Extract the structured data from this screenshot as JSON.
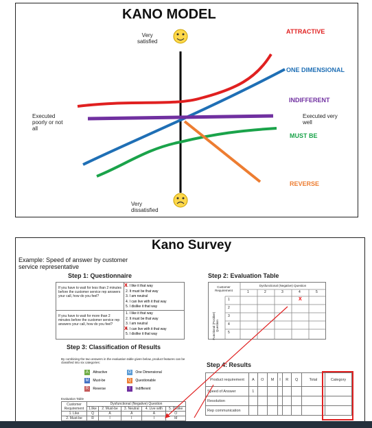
{
  "slide1": {
    "title": "KANO MODEL",
    "very_satisfied": "Very\nsatisfied",
    "very_dissatisfied": "Very\ndissatisfied",
    "executed_poorly": "Executed\npoorly or not\nall",
    "executed_well": "Executed very\nwell",
    "curves": [
      {
        "label": "ATTRACTIVE",
        "color": "#e02020"
      },
      {
        "label": "ONE DIMENSIONAL",
        "color": "#1f6fb5"
      },
      {
        "label": "INDIFFERENT",
        "color": "#7030a0"
      },
      {
        "label": "MUST BE",
        "color": "#1aa34a"
      },
      {
        "label": "REVERSE",
        "color": "#ed7d31"
      }
    ]
  },
  "slide2": {
    "title": "Kano Survey",
    "example": "Example: Speed of answer by customer\nservice representative",
    "step1": {
      "heading": "Step 1: Questionnaire",
      "q1": "If you have to wait for less than 2 minutes before the customer service rep answers your call, how do you feel?",
      "q2": "If you have to wait for more than 2 minutes before the customer service rep answers your call, how do you feel?",
      "answers1": [
        "1. I like it that way",
        "2. It must be that way",
        "3. I am neutral",
        "4. I can live with it that way",
        "5. I dislike it that way"
      ],
      "answers2": [
        "1. I like it that way",
        "2. It must be that way",
        "3. I am neutral",
        "4. I can live with it that way",
        "5. I dislike it that way"
      ],
      "mark": "X"
    },
    "step2": {
      "heading": "Step 2: Evaluation Table",
      "customer_requirement": "Customer Requirement",
      "dysfunctional": "Dysfunctional (Negative) Question",
      "functional": "Functional (Positive) Question",
      "cols": [
        "1",
        "2",
        "3",
        "4",
        "5"
      ],
      "rows": [
        "1",
        "2",
        "3",
        "4",
        "5"
      ],
      "mark": "X"
    },
    "step3": {
      "heading": "Step 3: Classification of Results",
      "desc": "By combining the two answers in the evaluation table given below, product features can be classified into six categories:",
      "categories": [
        {
          "code": "A",
          "name": "Attractive",
          "color": "#70ad47"
        },
        {
          "code": "M",
          "name": "Must-be",
          "color": "#4472c4"
        },
        {
          "code": "R",
          "name": "Reverse",
          "color": "#c55a5a"
        },
        {
          "code": "O",
          "name": "One Dimensional",
          "color": "#5b9bd5"
        },
        {
          "code": "Q",
          "name": "Questionable",
          "color": "#ed7d31"
        },
        {
          "code": "I",
          "name": "Indifferent",
          "color": "#7030a0"
        }
      ],
      "table_caption": "Evaluation Table",
      "table_header": "Dysfunctional (Negative) Question",
      "customer_requirement": "Customer Requirement",
      "col_heads": [
        "1.like",
        "2. Must-be",
        "3. Neutral",
        "4. Live with",
        "5. Dislike"
      ],
      "rows": [
        {
          "label": "1. Like",
          "cells": [
            "Q",
            "A",
            "A",
            "A",
            "O"
          ]
        },
        {
          "label": "2. Must-be",
          "cells": [
            "R",
            "I",
            "I",
            "I",
            "M"
          ]
        }
      ]
    },
    "step4": {
      "heading": "Step 4: Results",
      "headers": [
        "Product requirement",
        "A",
        "O",
        "M",
        "I",
        "R",
        "Q",
        "Total",
        "Category"
      ],
      "rows": [
        {
          "label": "Speed of Answer",
          "a": "1"
        },
        {
          "label": "Resolution",
          "a": ""
        },
        {
          "label": "Rep communication",
          "a": ""
        }
      ]
    }
  }
}
